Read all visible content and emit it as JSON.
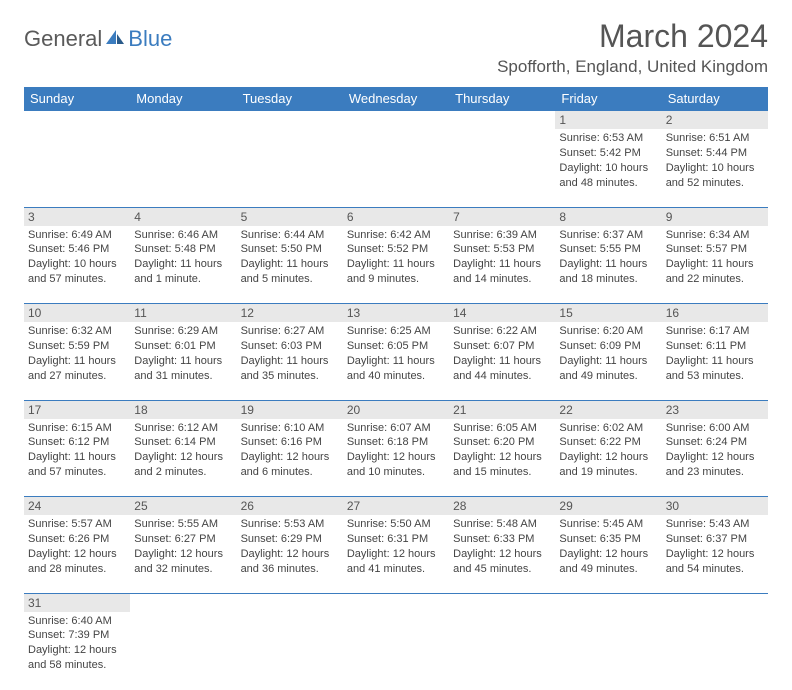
{
  "logo": {
    "text1": "General",
    "text2": "Blue"
  },
  "title": "March 2024",
  "location": "Spofforth, England, United Kingdom",
  "colors": {
    "header_bg": "#3b7cbf",
    "header_text": "#ffffff",
    "daynum_bg": "#e8e8e8",
    "border": "#3b7cbf",
    "body_text": "#444444"
  },
  "weekdays": [
    "Sunday",
    "Monday",
    "Tuesday",
    "Wednesday",
    "Thursday",
    "Friday",
    "Saturday"
  ],
  "weeks": [
    [
      null,
      null,
      null,
      null,
      null,
      {
        "n": "1",
        "sr": "Sunrise: 6:53 AM",
        "ss": "Sunset: 5:42 PM",
        "dl": "Daylight: 10 hours and 48 minutes."
      },
      {
        "n": "2",
        "sr": "Sunrise: 6:51 AM",
        "ss": "Sunset: 5:44 PM",
        "dl": "Daylight: 10 hours and 52 minutes."
      }
    ],
    [
      {
        "n": "3",
        "sr": "Sunrise: 6:49 AM",
        "ss": "Sunset: 5:46 PM",
        "dl": "Daylight: 10 hours and 57 minutes."
      },
      {
        "n": "4",
        "sr": "Sunrise: 6:46 AM",
        "ss": "Sunset: 5:48 PM",
        "dl": "Daylight: 11 hours and 1 minute."
      },
      {
        "n": "5",
        "sr": "Sunrise: 6:44 AM",
        "ss": "Sunset: 5:50 PM",
        "dl": "Daylight: 11 hours and 5 minutes."
      },
      {
        "n": "6",
        "sr": "Sunrise: 6:42 AM",
        "ss": "Sunset: 5:52 PM",
        "dl": "Daylight: 11 hours and 9 minutes."
      },
      {
        "n": "7",
        "sr": "Sunrise: 6:39 AM",
        "ss": "Sunset: 5:53 PM",
        "dl": "Daylight: 11 hours and 14 minutes."
      },
      {
        "n": "8",
        "sr": "Sunrise: 6:37 AM",
        "ss": "Sunset: 5:55 PM",
        "dl": "Daylight: 11 hours and 18 minutes."
      },
      {
        "n": "9",
        "sr": "Sunrise: 6:34 AM",
        "ss": "Sunset: 5:57 PM",
        "dl": "Daylight: 11 hours and 22 minutes."
      }
    ],
    [
      {
        "n": "10",
        "sr": "Sunrise: 6:32 AM",
        "ss": "Sunset: 5:59 PM",
        "dl": "Daylight: 11 hours and 27 minutes."
      },
      {
        "n": "11",
        "sr": "Sunrise: 6:29 AM",
        "ss": "Sunset: 6:01 PM",
        "dl": "Daylight: 11 hours and 31 minutes."
      },
      {
        "n": "12",
        "sr": "Sunrise: 6:27 AM",
        "ss": "Sunset: 6:03 PM",
        "dl": "Daylight: 11 hours and 35 minutes."
      },
      {
        "n": "13",
        "sr": "Sunrise: 6:25 AM",
        "ss": "Sunset: 6:05 PM",
        "dl": "Daylight: 11 hours and 40 minutes."
      },
      {
        "n": "14",
        "sr": "Sunrise: 6:22 AM",
        "ss": "Sunset: 6:07 PM",
        "dl": "Daylight: 11 hours and 44 minutes."
      },
      {
        "n": "15",
        "sr": "Sunrise: 6:20 AM",
        "ss": "Sunset: 6:09 PM",
        "dl": "Daylight: 11 hours and 49 minutes."
      },
      {
        "n": "16",
        "sr": "Sunrise: 6:17 AM",
        "ss": "Sunset: 6:11 PM",
        "dl": "Daylight: 11 hours and 53 minutes."
      }
    ],
    [
      {
        "n": "17",
        "sr": "Sunrise: 6:15 AM",
        "ss": "Sunset: 6:12 PM",
        "dl": "Daylight: 11 hours and 57 minutes."
      },
      {
        "n": "18",
        "sr": "Sunrise: 6:12 AM",
        "ss": "Sunset: 6:14 PM",
        "dl": "Daylight: 12 hours and 2 minutes."
      },
      {
        "n": "19",
        "sr": "Sunrise: 6:10 AM",
        "ss": "Sunset: 6:16 PM",
        "dl": "Daylight: 12 hours and 6 minutes."
      },
      {
        "n": "20",
        "sr": "Sunrise: 6:07 AM",
        "ss": "Sunset: 6:18 PM",
        "dl": "Daylight: 12 hours and 10 minutes."
      },
      {
        "n": "21",
        "sr": "Sunrise: 6:05 AM",
        "ss": "Sunset: 6:20 PM",
        "dl": "Daylight: 12 hours and 15 minutes."
      },
      {
        "n": "22",
        "sr": "Sunrise: 6:02 AM",
        "ss": "Sunset: 6:22 PM",
        "dl": "Daylight: 12 hours and 19 minutes."
      },
      {
        "n": "23",
        "sr": "Sunrise: 6:00 AM",
        "ss": "Sunset: 6:24 PM",
        "dl": "Daylight: 12 hours and 23 minutes."
      }
    ],
    [
      {
        "n": "24",
        "sr": "Sunrise: 5:57 AM",
        "ss": "Sunset: 6:26 PM",
        "dl": "Daylight: 12 hours and 28 minutes."
      },
      {
        "n": "25",
        "sr": "Sunrise: 5:55 AM",
        "ss": "Sunset: 6:27 PM",
        "dl": "Daylight: 12 hours and 32 minutes."
      },
      {
        "n": "26",
        "sr": "Sunrise: 5:53 AM",
        "ss": "Sunset: 6:29 PM",
        "dl": "Daylight: 12 hours and 36 minutes."
      },
      {
        "n": "27",
        "sr": "Sunrise: 5:50 AM",
        "ss": "Sunset: 6:31 PM",
        "dl": "Daylight: 12 hours and 41 minutes."
      },
      {
        "n": "28",
        "sr": "Sunrise: 5:48 AM",
        "ss": "Sunset: 6:33 PM",
        "dl": "Daylight: 12 hours and 45 minutes."
      },
      {
        "n": "29",
        "sr": "Sunrise: 5:45 AM",
        "ss": "Sunset: 6:35 PM",
        "dl": "Daylight: 12 hours and 49 minutes."
      },
      {
        "n": "30",
        "sr": "Sunrise: 5:43 AM",
        "ss": "Sunset: 6:37 PM",
        "dl": "Daylight: 12 hours and 54 minutes."
      }
    ],
    [
      {
        "n": "31",
        "sr": "Sunrise: 6:40 AM",
        "ss": "Sunset: 7:39 PM",
        "dl": "Daylight: 12 hours and 58 minutes."
      },
      null,
      null,
      null,
      null,
      null,
      null
    ]
  ]
}
